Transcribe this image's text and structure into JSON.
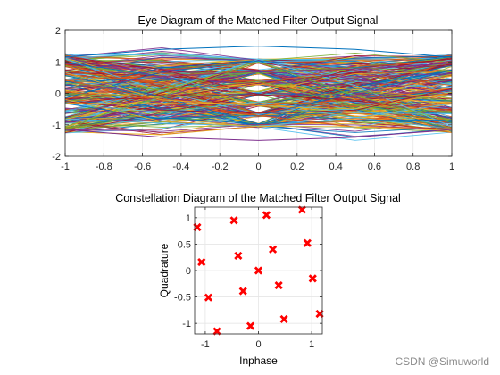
{
  "figure": {
    "background": "#ffffff"
  },
  "watermark": "CSDN @Simuworld",
  "chart_data": [
    {
      "type": "line",
      "title": "Eye Diagram of the Matched Filter Output Signal",
      "xlabel": "",
      "ylabel": "",
      "xlim": [
        -1,
        1
      ],
      "ylim": [
        -2,
        2
      ],
      "x_ticks": [
        -1,
        -0.8,
        -0.6,
        -0.4,
        -0.2,
        0,
        0.2,
        0.4,
        0.6,
        0.8,
        1
      ],
      "x_tick_labels": [
        "-1",
        "-0.8",
        "-0.6",
        "-0.4",
        "-0.2",
        "0",
        "0.2",
        "0.4",
        "0.6",
        "0.8",
        "1"
      ],
      "y_ticks": [
        -2,
        -1,
        0,
        1,
        2
      ],
      "y_tick_labels": [
        "-2",
        "-1",
        "0",
        "1",
        "2"
      ],
      "grid": true,
      "x": [
        -1,
        -0.5,
        0,
        0.5,
        1
      ],
      "trace_levels_main": [
        -1.02,
        -0.68,
        -0.34,
        0,
        0.34,
        0.68,
        1.02
      ],
      "trace_levels_edge": [
        -1.15,
        -0.85,
        -0.55,
        -0.25,
        0.05,
        0.35,
        0.65,
        0.95,
        1.15
      ],
      "outer_envelope": [
        -1.5,
        1.5
      ],
      "palette": [
        "#0072bd",
        "#d95319",
        "#edb120",
        "#7e2f8e",
        "#77ac30",
        "#4dbeee",
        "#a2142f"
      ]
    },
    {
      "type": "scatter",
      "title": "Constellation Diagram of the Matched Filter Output Signal",
      "xlabel": "Inphase",
      "ylabel": "Quadrature",
      "xlim": [
        -1.2,
        1.2
      ],
      "ylim": [
        -1.2,
        1.2
      ],
      "x_ticks": [
        -1,
        0,
        1
      ],
      "x_tick_labels": [
        "-1",
        "0",
        "1"
      ],
      "y_ticks": [
        -1,
        -0.5,
        0,
        0.5,
        1
      ],
      "y_tick_labels": [
        "-1",
        "-0.5",
        "0",
        "0.5",
        "1"
      ],
      "grid": true,
      "marker_color": "#ff0000",
      "points": [
        [
          0.82,
          1.15
        ],
        [
          0.15,
          1.05
        ],
        [
          -0.46,
          0.95
        ],
        [
          -1.15,
          0.82
        ],
        [
          0.92,
          0.52
        ],
        [
          0.27,
          0.4
        ],
        [
          -0.38,
          0.28
        ],
        [
          -1.07,
          0.16
        ],
        [
          0.0,
          0.0
        ],
        [
          1.02,
          -0.15
        ],
        [
          0.38,
          -0.28
        ],
        [
          -0.29,
          -0.39
        ],
        [
          -0.94,
          -0.51
        ],
        [
          1.15,
          -0.82
        ],
        [
          0.48,
          -0.92
        ],
        [
          -0.15,
          -1.05
        ],
        [
          -0.78,
          -1.15
        ]
      ]
    }
  ]
}
